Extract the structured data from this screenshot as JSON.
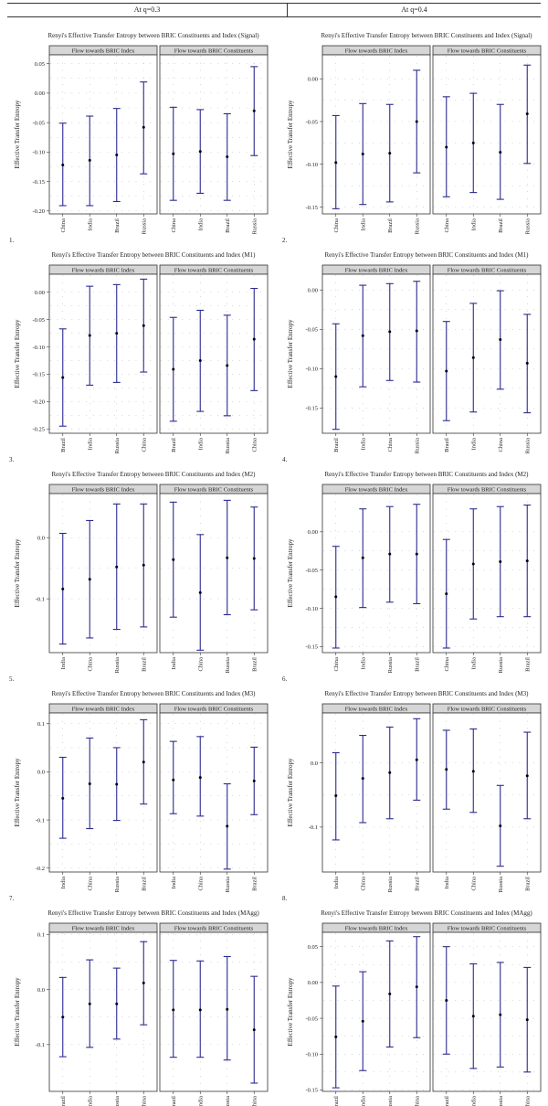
{
  "header": {
    "left": "At q=0.3",
    "right": "At q=0.4"
  },
  "panel_left": "Flow towards BRIC Index",
  "panel_right": "Flow towards BRIC Constituents",
  "ylabel": "Effective Transfer Entropy",
  "chart_data": [
    {
      "number": "1.",
      "type": "errorbar",
      "title": "Renyi's Effective Transfer Entropy between BRIC Constituents and Index (Signal)",
      "yticks": [
        0.05,
        0.0,
        -0.05,
        -0.1,
        -0.15,
        -0.2
      ],
      "ylim": [
        -0.205,
        0.065
      ],
      "left": {
        "categories": [
          "China",
          "India",
          "Brazil",
          "Russia"
        ],
        "mean": [
          -0.122,
          -0.114,
          -0.105,
          -0.058
        ],
        "low": [
          -0.191,
          -0.191,
          -0.184,
          -0.137
        ],
        "high": [
          -0.051,
          -0.039,
          -0.026,
          0.019
        ]
      },
      "right": {
        "categories": [
          "China",
          "India",
          "Brazil",
          "Russia"
        ],
        "mean": [
          -0.103,
          -0.099,
          -0.108,
          -0.03
        ],
        "low": [
          -0.182,
          -0.17,
          -0.182,
          -0.106
        ],
        "high": [
          -0.024,
          -0.028,
          -0.035,
          0.045
        ]
      }
    },
    {
      "number": "2.",
      "type": "errorbar",
      "title": "Renyi's Effective Transfer Entropy between BRIC Constituents and Index (Signal)",
      "yticks": [
        0.0,
        -0.05,
        -0.1,
        -0.15
      ],
      "ylim": [
        -0.158,
        0.028
      ],
      "left": {
        "categories": [
          "China",
          "India",
          "Brazil",
          "Russia"
        ],
        "mean": [
          -0.098,
          -0.088,
          -0.087,
          -0.05
        ],
        "low": [
          -0.152,
          -0.147,
          -0.144,
          -0.11
        ],
        "high": [
          -0.043,
          -0.029,
          -0.03,
          0.01
        ]
      },
      "right": {
        "categories": [
          "China",
          "India",
          "Brazil",
          "Russia"
        ],
        "mean": [
          -0.08,
          -0.075,
          -0.086,
          -0.041
        ],
        "low": [
          -0.138,
          -0.133,
          -0.141,
          -0.099
        ],
        "high": [
          -0.021,
          -0.017,
          -0.03,
          0.016
        ]
      }
    },
    {
      "number": "3.",
      "type": "errorbar",
      "title": "Renyi's Effective Transfer Entropy between BRIC Constituents and Index (M1)",
      "yticks": [
        0.0,
        -0.05,
        -0.1,
        -0.15,
        -0.2,
        -0.25
      ],
      "ylim": [
        -0.258,
        0.033
      ],
      "left": {
        "categories": [
          "Brazil",
          "India",
          "Russia",
          "China"
        ],
        "mean": [
          -0.156,
          -0.079,
          -0.075,
          -0.061
        ],
        "low": [
          -0.245,
          -0.17,
          -0.165,
          -0.146
        ],
        "high": [
          -0.067,
          0.011,
          0.014,
          0.024
        ]
      },
      "right": {
        "categories": [
          "Brazil",
          "India",
          "Russia",
          "China"
        ],
        "mean": [
          -0.141,
          -0.125,
          -0.134,
          -0.086
        ],
        "low": [
          -0.236,
          -0.218,
          -0.226,
          -0.18
        ],
        "high": [
          -0.046,
          -0.033,
          -0.042,
          0.007
        ]
      }
    },
    {
      "number": "4.",
      "type": "errorbar",
      "title": "Renyi's Effective Transfer Entropy between BRIC Constituents and Index (M1)",
      "yticks": [
        0.0,
        -0.05,
        -0.1,
        -0.15
      ],
      "ylim": [
        -0.182,
        0.02
      ],
      "left": {
        "categories": [
          "Brazil",
          "India",
          "China",
          "Russia"
        ],
        "mean": [
          -0.11,
          -0.058,
          -0.053,
          -0.052
        ],
        "low": [
          -0.177,
          -0.123,
          -0.115,
          -0.117
        ],
        "high": [
          -0.043,
          0.006,
          0.008,
          0.011
        ]
      },
      "right": {
        "categories": [
          "Brazil",
          "India",
          "China",
          "Russia"
        ],
        "mean": [
          -0.103,
          -0.086,
          -0.063,
          -0.093
        ],
        "low": [
          -0.166,
          -0.155,
          -0.126,
          -0.156
        ],
        "high": [
          -0.04,
          -0.017,
          -0.001,
          -0.031
        ]
      }
    },
    {
      "number": "5.",
      "type": "errorbar",
      "title": "Renyi's Effective Transfer Entropy between BRIC Constituents and Index (M2)",
      "yticks": [
        0.0,
        -0.1
      ],
      "ylim": [
        -0.188,
        0.072
      ],
      "left": {
        "categories": [
          "India",
          "China",
          "Russia",
          "Brazil"
        ],
        "mean": [
          -0.084,
          -0.068,
          -0.048,
          -0.045
        ],
        "low": [
          -0.174,
          -0.164,
          -0.15,
          -0.146
        ],
        "high": [
          0.007,
          0.028,
          0.055,
          0.055
        ]
      },
      "right": {
        "categories": [
          "India",
          "China",
          "Russia",
          "Brazil"
        ],
        "mean": [
          -0.036,
          -0.09,
          -0.033,
          -0.034
        ],
        "low": [
          -0.13,
          -0.184,
          -0.126,
          -0.118
        ],
        "high": [
          0.058,
          0.005,
          0.061,
          0.05
        ]
      }
    },
    {
      "number": "6.",
      "type": "errorbar",
      "title": "Renyi's Effective Transfer Entropy between BRIC Constituents and Index (M2)",
      "yticks": [
        0.0,
        -0.05,
        -0.1,
        -0.15
      ],
      "ylim": [
        -0.158,
        0.05
      ],
      "left": {
        "categories": [
          "China",
          "India",
          "Russia",
          "Brazil"
        ],
        "mean": [
          -0.085,
          -0.034,
          -0.029,
          -0.029
        ],
        "low": [
          -0.152,
          -0.099,
          -0.092,
          -0.094
        ],
        "high": [
          -0.019,
          0.03,
          0.033,
          0.036
        ]
      },
      "right": {
        "categories": [
          "China",
          "India",
          "Russia",
          "Brazil"
        ],
        "mean": [
          -0.081,
          -0.042,
          -0.039,
          -0.038
        ],
        "low": [
          -0.152,
          -0.114,
          -0.111,
          -0.111
        ],
        "high": [
          -0.01,
          0.03,
          0.033,
          0.035
        ]
      }
    },
    {
      "number": "7.",
      "type": "errorbar",
      "title": "Renyi's Effective Transfer Entropy between BRIC Constituents and Index (M3)",
      "yticks": [
        0.1,
        0.0,
        -0.1,
        -0.2
      ],
      "ylim": [
        -0.208,
        0.122
      ],
      "left": {
        "categories": [
          "India",
          "China",
          "Russia",
          "Brazil"
        ],
        "mean": [
          -0.055,
          -0.025,
          -0.026,
          0.02
        ],
        "low": [
          -0.138,
          -0.118,
          -0.101,
          -0.067
        ],
        "high": [
          0.03,
          0.07,
          0.05,
          0.108
        ]
      },
      "right": {
        "categories": [
          "India",
          "China",
          "Russia",
          "Brazil"
        ],
        "mean": [
          -0.017,
          -0.012,
          -0.113,
          -0.019
        ],
        "low": [
          -0.087,
          -0.092,
          -0.202,
          -0.089
        ],
        "high": [
          0.063,
          0.073,
          -0.025,
          0.051
        ]
      }
    },
    {
      "number": "8.",
      "type": "errorbar",
      "title": "Renyi's Effective Transfer Entropy between BRIC Constituents and Index (M3)",
      "yticks": [
        0.0,
        -0.1
      ],
      "ylim": [
        -0.17,
        0.078
      ],
      "left": {
        "categories": [
          "India",
          "China",
          "Russia",
          "Brazil"
        ],
        "mean": [
          -0.051,
          -0.024,
          -0.015,
          0.005
        ],
        "low": [
          -0.12,
          -0.093,
          -0.087,
          -0.058
        ],
        "high": [
          0.016,
          0.043,
          0.056,
          0.069
        ]
      },
      "right": {
        "categories": [
          "India",
          "China",
          "Russia",
          "Brazil"
        ],
        "mean": [
          -0.01,
          -0.013,
          -0.098,
          -0.02
        ],
        "low": [
          -0.072,
          -0.077,
          -0.161,
          -0.087
        ],
        "high": [
          0.051,
          0.053,
          -0.035,
          0.048
        ]
      }
    },
    {
      "number": "9.",
      "type": "errorbar",
      "title": "Renyi's Effective Transfer Entropy between BRIC Constituents and Index (MAgg)",
      "yticks": [
        0.1,
        0.0,
        -0.1
      ],
      "ylim": [
        -0.185,
        0.104
      ],
      "left": {
        "categories": [
          "Brazil",
          "India",
          "Russia",
          "China"
        ],
        "mean": [
          -0.05,
          -0.026,
          -0.026,
          0.012
        ],
        "low": [
          -0.122,
          -0.105,
          -0.09,
          -0.064
        ],
        "high": [
          0.022,
          0.054,
          0.039,
          0.087
        ]
      },
      "right": {
        "categories": [
          "Brazil",
          "India",
          "Russia",
          "China"
        ],
        "mean": [
          -0.037,
          -0.037,
          -0.036,
          -0.073
        ],
        "low": [
          -0.123,
          -0.123,
          -0.128,
          -0.17
        ],
        "high": [
          0.053,
          0.052,
          0.06,
          0.024
        ]
      }
    },
    {
      "number": "10.",
      "type": "errorbar",
      "title": "Renyi's Effective Transfer Entropy between BRIC Constituents and Index (MAgg)",
      "yticks": [
        0.05,
        0.0,
        -0.05,
        -0.1,
        -0.15
      ],
      "ylim": [
        -0.152,
        0.07
      ],
      "left": {
        "categories": [
          "Brazil",
          "India",
          "Russia",
          "China"
        ],
        "mean": [
          -0.076,
          -0.054,
          -0.016,
          -0.006
        ],
        "low": [
          -0.147,
          -0.123,
          -0.09,
          -0.077
        ],
        "high": [
          -0.005,
          0.015,
          0.058,
          0.064
        ]
      },
      "right": {
        "categories": [
          "Brazil",
          "India",
          "Russia",
          "China"
        ],
        "mean": [
          -0.025,
          -0.047,
          -0.045,
          -0.052
        ],
        "low": [
          -0.1,
          -0.12,
          -0.118,
          -0.125
        ],
        "high": [
          0.05,
          0.026,
          0.028,
          0.021
        ]
      }
    }
  ],
  "colors": {
    "errorbar": "#2b2b8f",
    "point": "#000000",
    "strip": "#d6d6d6",
    "border": "#333333",
    "grid": "#9a9a9a"
  }
}
